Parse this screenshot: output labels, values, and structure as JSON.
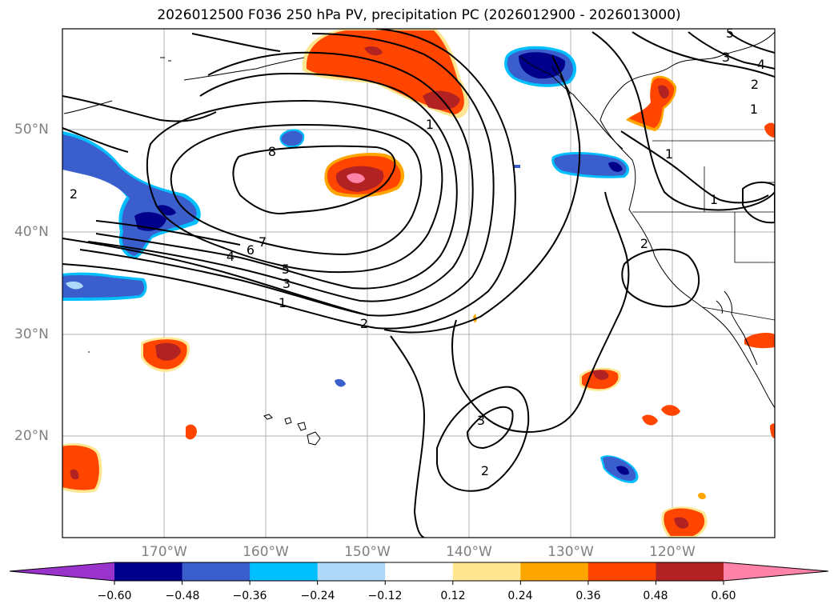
{
  "title": "2026012500 F036 250 hPa PV, precipitation PC (2026012900 - 2026013000)",
  "map": {
    "lat_labels": [
      "50°N",
      "40°N",
      "30°N",
      "20°N"
    ],
    "lon_labels": [
      "170°W",
      "160°W",
      "150°W",
      "140°W",
      "130°W",
      "120°W"
    ],
    "pv_contour_labels": [
      "8",
      "7",
      "6",
      "5",
      "4",
      "3",
      "2",
      "1",
      "1",
      "2",
      "3",
      "2",
      "2",
      "3",
      "4",
      "5",
      "2",
      "1",
      "1",
      "1"
    ]
  },
  "colorbar": {
    "tick_labels": [
      "−0.60",
      "−0.48",
      "−0.36",
      "−0.24",
      "−0.12",
      "0.12",
      "0.24",
      "0.36",
      "0.48",
      "0.60"
    ],
    "colors": [
      "#9933cc",
      "#00008b",
      "#3a5fcd",
      "#00bfff",
      "#add8f7",
      "#ffffff",
      "#ffe690",
      "#ffa500",
      "#ff4500",
      "#b22222",
      "#ff82a9"
    ]
  }
}
